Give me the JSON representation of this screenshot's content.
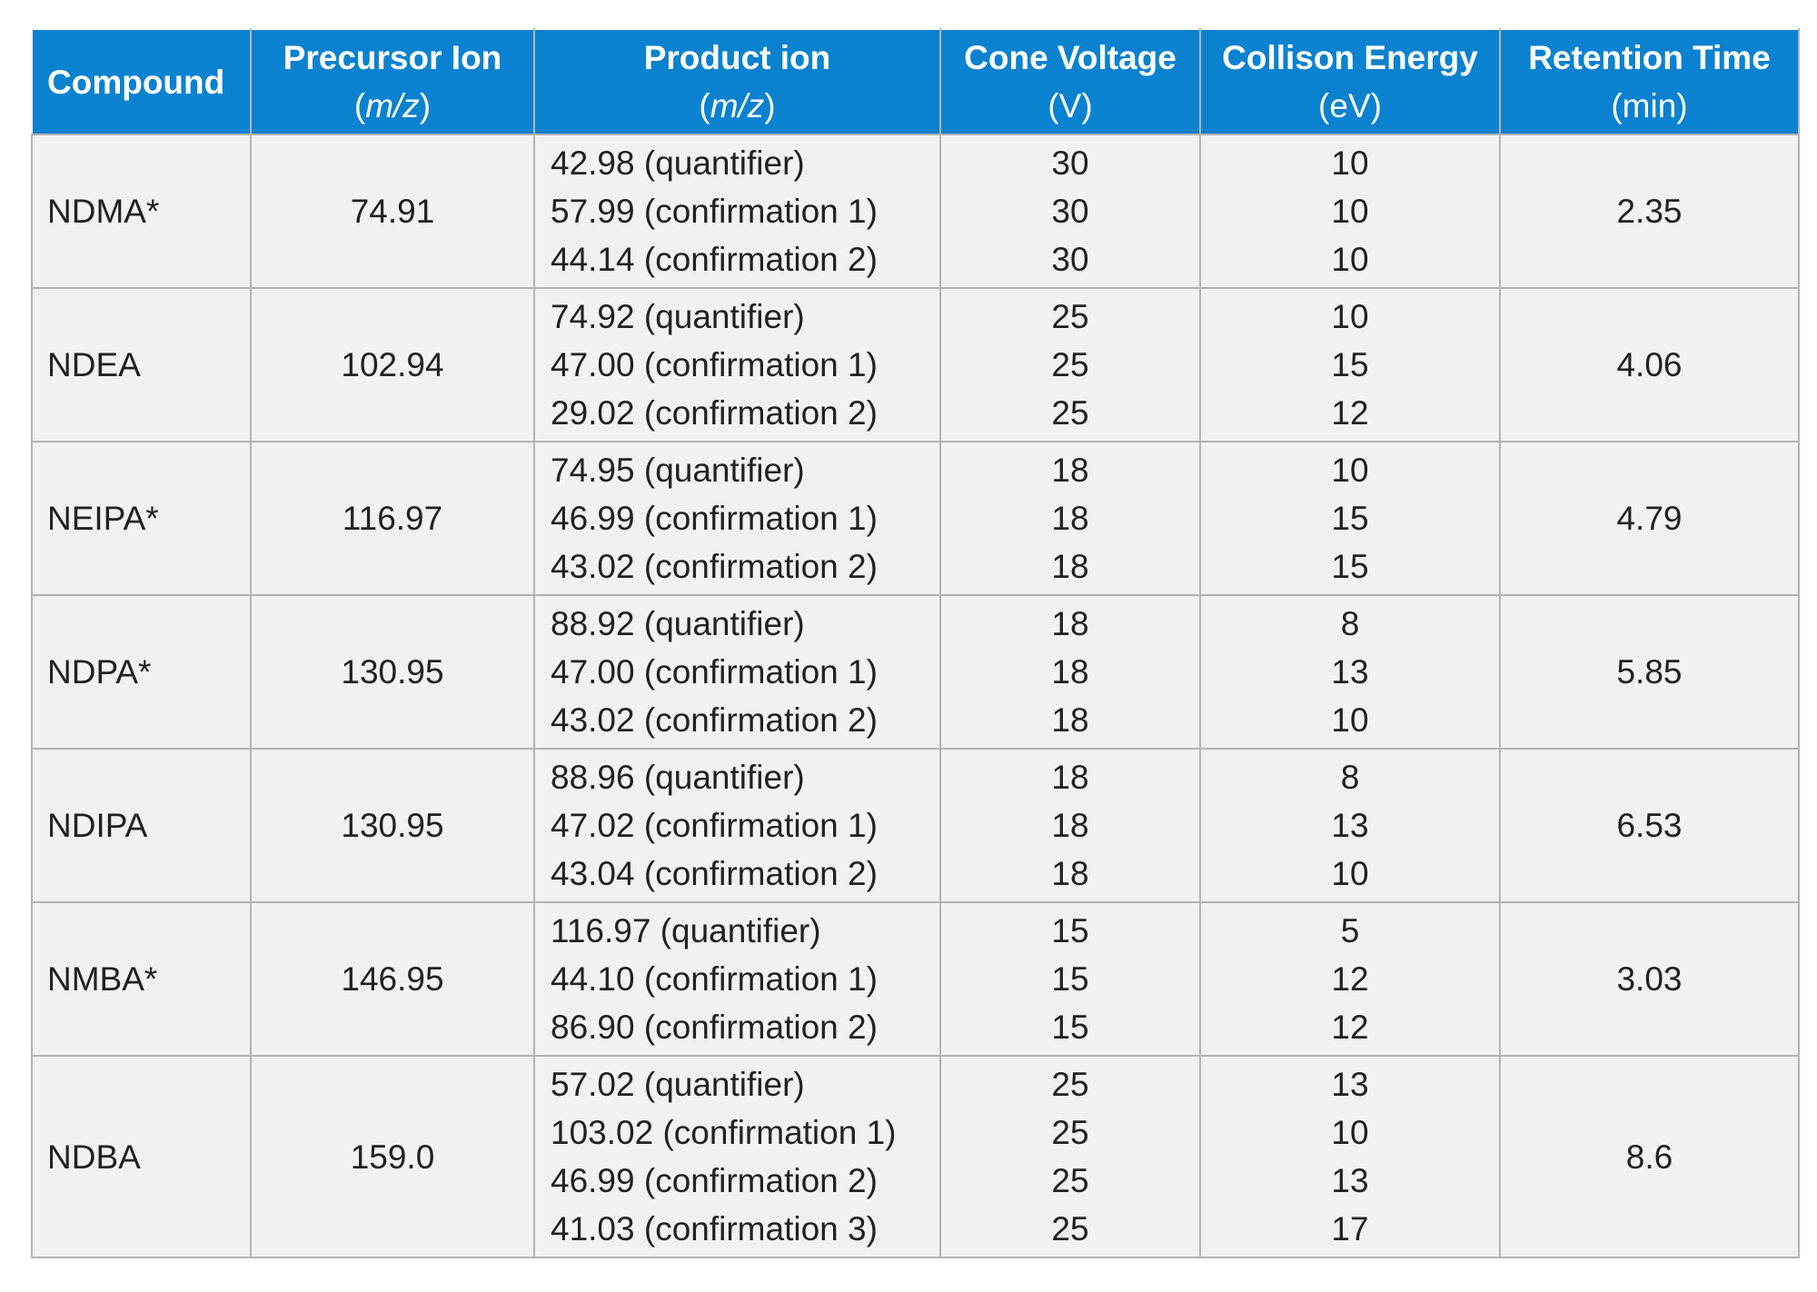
{
  "table": {
    "headers": [
      {
        "title": "Compound",
        "unit": ""
      },
      {
        "title": "Precursor Ion",
        "unit": "m/z"
      },
      {
        "title": "Product ion",
        "unit": "m/z"
      },
      {
        "title": "Cone Voltage",
        "unit": "(V)"
      },
      {
        "title": "Collison Energy",
        "unit": "(eV)"
      },
      {
        "title": "Retention Time",
        "unit": "(min)"
      }
    ],
    "rows": [
      {
        "compound": "NDMA*",
        "precursor": "74.91",
        "products": [
          "42.98 (quantifier)",
          "57.99 (confirmation 1)",
          "44.14 (confirmation 2)"
        ],
        "cone": [
          "30",
          "30",
          "30"
        ],
        "energy": [
          "10",
          "10",
          "10"
        ],
        "rt": "2.35"
      },
      {
        "compound": "NDEA",
        "precursor": "102.94",
        "products": [
          "74.92 (quantifier)",
          "47.00 (confirmation 1)",
          "29.02 (confirmation 2)"
        ],
        "cone": [
          "25",
          "25",
          "25"
        ],
        "energy": [
          "10",
          "15",
          "12"
        ],
        "rt": "4.06"
      },
      {
        "compound": "NEIPA*",
        "precursor": "116.97",
        "products": [
          "74.95 (quantifier)",
          "46.99 (confirmation 1)",
          "43.02 (confirmation 2)"
        ],
        "cone": [
          "18",
          "18",
          "18"
        ],
        "energy": [
          "10",
          "15",
          "15"
        ],
        "rt": "4.79"
      },
      {
        "compound": "NDPA*",
        "precursor": "130.95",
        "products": [
          "88.92 (quantifier)",
          "47.00 (confirmation 1)",
          "43.02 (confirmation 2)"
        ],
        "cone": [
          "18",
          "18",
          "18"
        ],
        "energy": [
          "8",
          "13",
          "10"
        ],
        "rt": "5.85"
      },
      {
        "compound": "NDIPA",
        "precursor": "130.95",
        "products": [
          "88.96 (quantifier)",
          "47.02 (confirmation 1)",
          "43.04 (confirmation 2)"
        ],
        "cone": [
          "18",
          "18",
          "18"
        ],
        "energy": [
          "8",
          "13",
          "10"
        ],
        "rt": "6.53"
      },
      {
        "compound": "NMBA*",
        "precursor": "146.95",
        "products": [
          "116.97 (quantifier)",
          "44.10 (confirmation 1)",
          "86.90 (confirmation 2)"
        ],
        "cone": [
          "15",
          "15",
          "15"
        ],
        "energy": [
          "5",
          "12",
          "12"
        ],
        "rt": "3.03"
      },
      {
        "compound": "NDBA",
        "precursor": "159.0",
        "products": [
          "57.02 (quantifier)",
          "103.02 (confirmation 1)",
          "46.99 (confirmation 2)",
          "41.03 (confirmation 3)"
        ],
        "cone": [
          "25",
          "25",
          "25",
          "25"
        ],
        "energy": [
          "13",
          "10",
          "13",
          "17"
        ],
        "rt": "8.6"
      }
    ]
  }
}
